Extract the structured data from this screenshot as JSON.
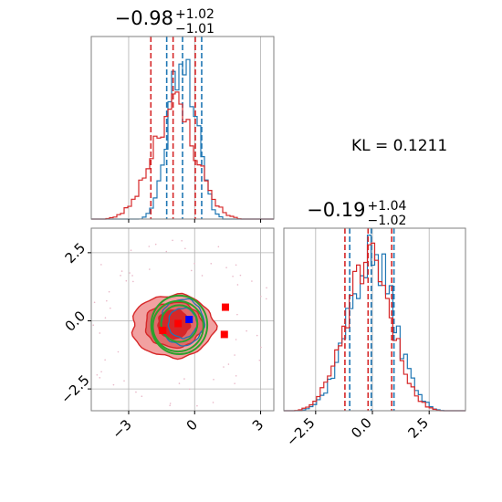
{
  "annotation": {
    "kl_text": "KL = 0.1211"
  },
  "colors": {
    "red": "#d62728",
    "blue": "#1f77b4",
    "green": "#2ca02c",
    "frame": "#7f7f7f",
    "grid": "#b0b0b0",
    "marker_red": "#ff0000",
    "marker_blue": "#0000ff"
  },
  "chart_data": [
    {
      "type": "histogram",
      "panel": "top-left",
      "title": {
        "main": "−0.98",
        "sup": "+1.02",
        "sub": "−1.01"
      },
      "xlim": [
        -4.7,
        3.6
      ],
      "grid": true,
      "x_ticks": [
        -3,
        0,
        3
      ],
      "x_tick_labels": [],
      "series": [
        {
          "color": "blue",
          "mean": -0.55,
          "sd": 0.62,
          "noise_seed": 11,
          "scale": 0.93,
          "quantile_lines": [
            -1.27,
            -0.55,
            0.32
          ]
        },
        {
          "color": "red",
          "mean": -0.95,
          "sd": 1.0,
          "noise_seed": 23,
          "scale": 0.62,
          "quantile_lines": [
            -1.99,
            -0.98,
            0.03
          ]
        }
      ]
    },
    {
      "type": "histogram",
      "panel": "bottom-right",
      "title": {
        "main": "−0.19",
        "sup": "+1.04",
        "sub": "−1.02"
      },
      "xlim": [
        -3.9,
        4.1
      ],
      "grid": true,
      "x_ticks": [
        -2.5,
        0.0,
        2.5
      ],
      "x_tick_labels": [
        "−2.5",
        "0.0",
        "2.5"
      ],
      "series": [
        {
          "color": "blue",
          "mean": -0.05,
          "sd": 1.02,
          "noise_seed": 37,
          "scale": 0.85,
          "quantile_lines": [
            -1.0,
            -0.05,
            0.95
          ]
        },
        {
          "color": "red",
          "mean": -0.19,
          "sd": 1.03,
          "noise_seed": 51,
          "scale": 0.8,
          "quantile_lines": [
            -1.21,
            -0.19,
            0.85
          ]
        }
      ]
    },
    {
      "type": "scatter",
      "panel": "bottom-left",
      "xlim": [
        -4.7,
        3.6
      ],
      "ylim": [
        -3.3,
        3.4
      ],
      "grid": true,
      "x_ticks": [
        -3,
        0,
        3
      ],
      "x_tick_labels": [
        "−3",
        "0",
        "3"
      ],
      "y_ticks": [
        2.5,
        0.0,
        -2.5
      ],
      "y_tick_labels": [
        "2.5",
        "0.0",
        "−2.5"
      ],
      "red_contours": [
        {
          "cx": -0.98,
          "cy": -0.19,
          "rx": 3.75,
          "ry": 2.3,
          "fill": "#f2a1a1"
        },
        {
          "cx": -0.95,
          "cy": -0.15,
          "rx": 2.6,
          "ry": 1.65,
          "fill": "#e06a6a"
        },
        {
          "cx": -0.95,
          "cy": -0.12,
          "rx": 1.45,
          "ry": 1.05,
          "fill": "#d62728"
        }
      ],
      "green_ellipses": [
        {
          "cx": -0.7,
          "cy": -0.15,
          "rx": 2.55,
          "ry": 2.15
        },
        {
          "cx": -0.75,
          "cy": -0.2,
          "rx": 2.3,
          "ry": 1.85
        },
        {
          "cx": -0.7,
          "cy": -0.1,
          "rx": 1.65,
          "ry": 1.35
        }
      ],
      "blue_contours": [
        {
          "cx": -0.55,
          "cy": -0.05,
          "rx": 1.95,
          "ry": 1.7
        },
        {
          "cx": -0.55,
          "cy": -0.08,
          "rx": 1.3,
          "ry": 1.1
        }
      ],
      "markers": [
        {
          "x": -0.25,
          "y": 0.05,
          "color": "marker_blue"
        },
        {
          "x": -0.75,
          "y": -0.1,
          "color": "marker_red"
        },
        {
          "x": -1.45,
          "y": -0.35,
          "color": "marker_red"
        },
        {
          "x": 1.4,
          "y": 0.5,
          "color": "marker_red"
        },
        {
          "x": 1.35,
          "y": -0.5,
          "color": "marker_red"
        }
      ]
    }
  ]
}
